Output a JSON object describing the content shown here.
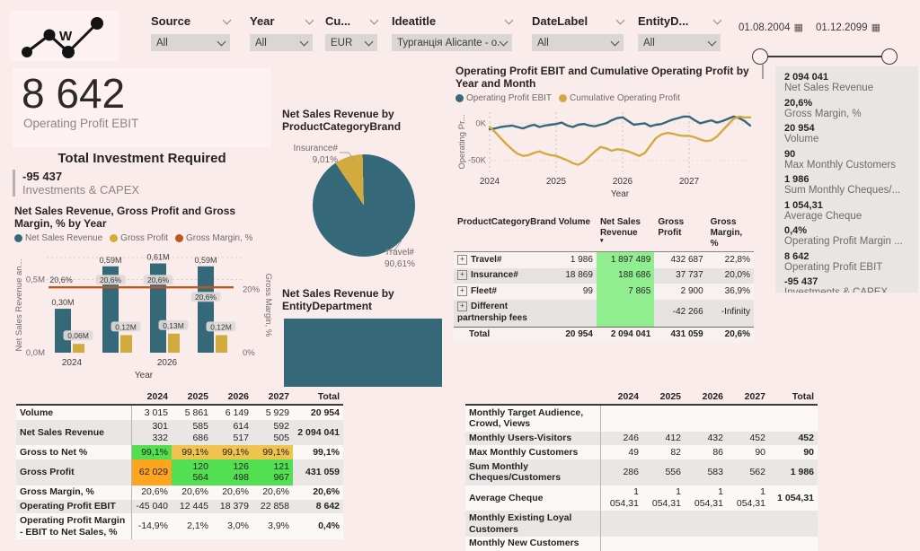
{
  "colors": {
    "teal": "#35697a",
    "gold": "#d2ab3f",
    "rust": "#c0561f",
    "light_green": "#90ee90",
    "bright_green": "#52e052",
    "amber": "#f0c24e",
    "orange": "#ffa41e"
  },
  "header": {
    "filters": [
      {
        "label": "Source",
        "value": "All"
      },
      {
        "label": "Year",
        "value": "All"
      },
      {
        "label": "Cu...",
        "value": "EUR"
      },
      {
        "label": "Ideatitle",
        "value": "Турганція Alicante - o..."
      },
      {
        "label": "DateLabel",
        "value": "All"
      },
      {
        "label": "EntityD...",
        "value": "All"
      }
    ],
    "date_start": "01.08.2004",
    "date_end": "01.12.2099"
  },
  "kpi": {
    "value": "8 642",
    "label": "Operating Profit EBIT"
  },
  "investment": {
    "title": "Total Investment Required",
    "value": "-95 437",
    "label": "Investments & CAPEX"
  },
  "sidebar": {
    "items": [
      {
        "value": "2 094 041",
        "label": "Net Sales Revenue"
      },
      {
        "value": "20,6%",
        "label": "Gross Margin, %"
      },
      {
        "value": "20 954",
        "label": "Volume"
      },
      {
        "value": "90",
        "label": "Max Monthly Customers"
      },
      {
        "value": "1 986",
        "label": "Sum Monthly Cheques/..."
      },
      {
        "value": "1 054,31",
        "label": "Average Cheque"
      },
      {
        "value": "0,4%",
        "label": "Operating Profit Margin ..."
      },
      {
        "value": "8 642",
        "label": "Operating Profit EBIT"
      },
      {
        "value": "-95 437",
        "label": "Investments & CAPEX"
      }
    ]
  },
  "chart_data": [
    {
      "type": "bar",
      "title": "Net Sales Revenue, Gross Profit and Gross Margin, % by Year",
      "categories": [
        "2024",
        "2025",
        "2026",
        "2027"
      ],
      "series": [
        {
          "name": "Net Sales Revenue",
          "color_key": "teal",
          "axis": "left",
          "values": [
            300000,
            590000,
            610000,
            590000
          ],
          "labels": [
            "0,30M",
            "0,59M",
            "0,61M",
            "0,59M"
          ]
        },
        {
          "name": "Gross Profit",
          "color_key": "gold",
          "axis": "left",
          "values": [
            60000,
            120000,
            130000,
            120000
          ],
          "labels": [
            "0,06M",
            "0,12M",
            "0,13M",
            "0,12M"
          ]
        },
        {
          "name": "Gross Margin, %",
          "color_key": "rust",
          "axis": "right",
          "type": "line",
          "values": [
            20.6,
            20.6,
            20.6,
            20.6
          ],
          "labels": [
            "20,6%",
            "20,6%",
            "20,6%",
            "20,6%"
          ]
        }
      ],
      "y_left": {
        "title": "Net Sales Revenue an...",
        "ticks": [
          "0,0M",
          "0,5M"
        ],
        "max": 650000
      },
      "y_right": {
        "title": "Gross Margin, %",
        "ticks": [
          "0%",
          "20%"
        ],
        "max": 30
      },
      "x_title": "Year",
      "x_ticks_shown": [
        "2024",
        "2026"
      ],
      "grid": true
    },
    {
      "type": "pie",
      "title": "Net Sales Revenue by ProductCategoryBrand",
      "slices": [
        {
          "label": "Travel#",
          "pct": 90.61,
          "pct_label": "90,61%",
          "color_key": "teal"
        },
        {
          "label": "Insurance#",
          "pct": 9.01,
          "pct_label": "9,01%",
          "color_key": "gold"
        }
      ]
    },
    {
      "type": "line",
      "title": "Operating Profit EBIT and Cumulative Operating Profit by Year and Month",
      "x_years": [
        "2024",
        "2025",
        "2026",
        "2027"
      ],
      "y_title": "Operating Pr...",
      "y_ticks": [
        "0K",
        "-50K"
      ],
      "ylim_thousands": [
        -65,
        15
      ],
      "x_title": "Year",
      "legend_position": "top",
      "series": [
        {
          "name": "Operating Profit EBIT",
          "color_key": "teal",
          "values_thousands": [
            -8,
            -7,
            -5,
            -4,
            -3,
            -5,
            -7,
            -4,
            -2,
            -5,
            -3,
            -2,
            -1,
            1,
            -3,
            -5,
            -2,
            -1,
            -3,
            -4,
            -2,
            0,
            4,
            7,
            8,
            3,
            -2,
            -1,
            0,
            -4,
            -2,
            -1,
            2,
            5,
            7,
            9,
            9,
            4,
            0,
            2,
            4,
            1,
            3,
            6,
            9,
            7,
            3,
            -3
          ]
        },
        {
          "name": "Cumulative Operating Profit",
          "color_key": "gold",
          "values_thousands": [
            -5,
            -12,
            -20,
            -28,
            -35,
            -41,
            -44,
            -43,
            -40,
            -38,
            -41,
            -43,
            -44,
            -47,
            -50,
            -54,
            -56,
            -52,
            -45,
            -38,
            -32,
            -34,
            -37,
            -35,
            -36,
            -38,
            -41,
            -44,
            -40,
            -30,
            -20,
            -15,
            -13,
            -14,
            -16,
            -17,
            -17,
            -19,
            -22,
            -24,
            -23,
            -18,
            -10,
            -2,
            6,
            9,
            8,
            8
          ]
        }
      ]
    },
    {
      "type": "treemap",
      "title": "Net Sales Revenue by EntityDepartment",
      "blocks": [
        {
          "label": "",
          "color_key": "teal",
          "share": 1
        }
      ]
    }
  ],
  "product_table": {
    "headers": [
      "ProductCategoryBrand",
      "Volume",
      "Net Sales Revenue",
      "Gross Profit",
      "Gross Margin, %"
    ],
    "rows": [
      {
        "name": "Travel#",
        "volume": "1 986",
        "nsr": "1 897 489",
        "gp": "432 687",
        "gm": "22,8%"
      },
      {
        "name": "Insurance#",
        "volume": "18 869",
        "nsr": "188 686",
        "gp": "37 737",
        "gm": "20,0%"
      },
      {
        "name": "Fleet#",
        "volume": "99",
        "nsr": "7 865",
        "gp": "2 900",
        "gm": "36,9%"
      },
      {
        "name": "Different partnership fees",
        "volume": "",
        "nsr": "",
        "gp": "-42 266",
        "gm": "-Infinity"
      }
    ],
    "total": {
      "name": "Total",
      "volume": "20 954",
      "nsr": "2 094 041",
      "gp": "431 059",
      "gm": "20,6%"
    }
  },
  "financial_table": {
    "columns": [
      "",
      "2024",
      "2025",
      "2026",
      "2027",
      "Total"
    ],
    "rows": [
      {
        "label": "Volume",
        "values": [
          "3 015",
          "5 861",
          "6 149",
          "5 929"
        ],
        "total": "20 954",
        "cell_colors": [
          "",
          "",
          "",
          ""
        ]
      },
      {
        "label": "Net Sales Revenue",
        "values": [
          "301 332",
          "585 686",
          "614 517",
          "592 505"
        ],
        "total": "2 094 041",
        "cell_colors": [
          "",
          "",
          "",
          ""
        ]
      },
      {
        "label": "Gross to Net %",
        "values": [
          "99,1%",
          "99,1%",
          "99,1%",
          "99,1%"
        ],
        "total": "99,1%",
        "cell_colors": [
          "bright_green",
          "amber",
          "amber",
          "amber"
        ]
      },
      {
        "label": "Gross Profit",
        "values": [
          "62 029",
          "120 564",
          "126 498",
          "121 967"
        ],
        "total": "431 059",
        "cell_colors": [
          "orange",
          "bright_green",
          "bright_green",
          "bright_green"
        ]
      },
      {
        "label": "Gross Margin, %",
        "values": [
          "20,6%",
          "20,6%",
          "20,6%",
          "20,6%"
        ],
        "total": "20,6%",
        "cell_colors": [
          "",
          "",
          "",
          ""
        ]
      },
      {
        "label": "Operating Profit EBIT",
        "values": [
          "-45 040",
          "12 445",
          "18 379",
          "22 858"
        ],
        "total": "8 642",
        "cell_colors": [
          "",
          "",
          "",
          ""
        ]
      },
      {
        "label": "Operating Profit Margin - EBIT to Net Sales, %",
        "values": [
          "-14,9%",
          "2,1%",
          "3,0%",
          "3,9%"
        ],
        "total": "0,4%",
        "cell_colors": [
          "",
          "",
          "",
          ""
        ]
      }
    ]
  },
  "customer_table": {
    "columns": [
      "",
      "2024",
      "2025",
      "2026",
      "2027",
      "Total"
    ],
    "rows": [
      {
        "label": "Monthly Target Audience, Crowd, Views",
        "values": [
          "",
          "",
          "",
          ""
        ],
        "total": ""
      },
      {
        "label": "Monthly Users-Visitors",
        "values": [
          "246",
          "412",
          "432",
          "452"
        ],
        "total": "452"
      },
      {
        "label": "Max Monthly Customers",
        "values": [
          "49",
          "82",
          "86",
          "90"
        ],
        "total": "90"
      },
      {
        "label": "Sum Monthly Cheques/Customers",
        "values": [
          "286",
          "556",
          "583",
          "562"
        ],
        "total": "1 986"
      },
      {
        "label": "Average Cheque",
        "values": [
          "1 054,31",
          "1 054,31",
          "1 054,31",
          "1 054,31"
        ],
        "total": "1 054,31"
      },
      {
        "label": "Monthly Existing Loyal Customers",
        "values": [
          "",
          "",
          "",
          ""
        ],
        "total": ""
      },
      {
        "label": "Monthly New Customers",
        "values": [
          "",
          "",
          "",
          ""
        ],
        "total": ""
      }
    ]
  }
}
